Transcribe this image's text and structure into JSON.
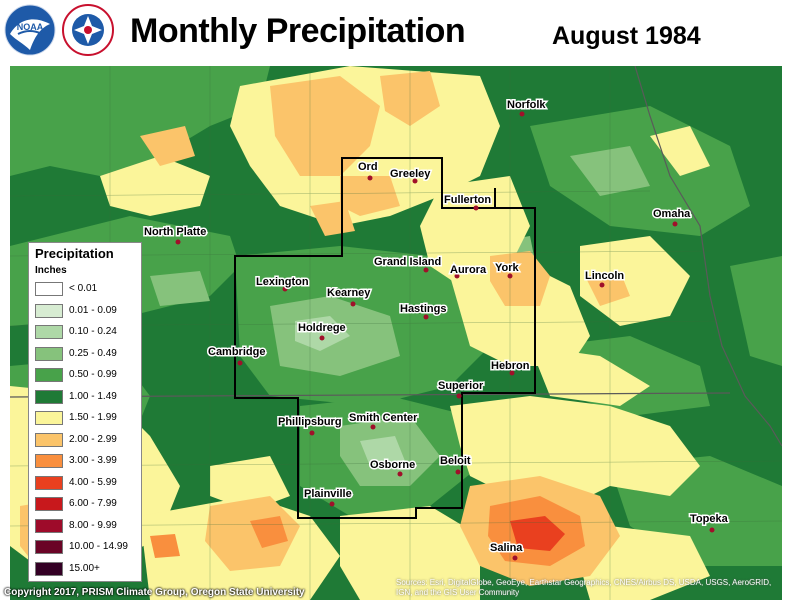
{
  "header": {
    "title": "Monthly Precipitation",
    "subtitle": "August 1984",
    "logos": [
      {
        "name": "NOAA",
        "icon": "noaa-logo"
      },
      {
        "name": "NATIONAL WEATHER SERVICE",
        "icon": "nws-logo"
      }
    ]
  },
  "legend": {
    "title": "Precipitation",
    "units": "Inches",
    "items": [
      {
        "label": "< 0.01",
        "color": "#ffffff"
      },
      {
        "label": "0.01 - 0.09",
        "color": "#d7ecd2"
      },
      {
        "label": "0.10 - 0.24",
        "color": "#aed8a7"
      },
      {
        "label": "0.25 - 0.49",
        "color": "#86c27c"
      },
      {
        "label": "0.50 - 0.99",
        "color": "#48a24a"
      },
      {
        "label": "1.00 - 1.49",
        "color": "#1f7a36"
      },
      {
        "label": "1.50 - 1.99",
        "color": "#fbf59a"
      },
      {
        "label": "2.00 - 2.99",
        "color": "#fbc46a"
      },
      {
        "label": "3.00 - 3.99",
        "color": "#f98f3e"
      },
      {
        "label": "4.00 - 5.99",
        "color": "#e9401f"
      },
      {
        "label": "6.00 - 7.99",
        "color": "#c8181c"
      },
      {
        "label": "8.00 - 9.99",
        "color": "#9e0b2a"
      },
      {
        "label": "10.00 - 14.99",
        "color": "#6a0426"
      },
      {
        "label": "15.00+",
        "color": "#330024"
      }
    ]
  },
  "cities": [
    {
      "name": "Norfolk"
    },
    {
      "name": "Ord"
    },
    {
      "name": "Greeley"
    },
    {
      "name": "Fullerton"
    },
    {
      "name": "North Platte"
    },
    {
      "name": "Omaha"
    },
    {
      "name": "Grand Island"
    },
    {
      "name": "Aurora"
    },
    {
      "name": "York"
    },
    {
      "name": "Lincoln"
    },
    {
      "name": "Lexington"
    },
    {
      "name": "Kearney"
    },
    {
      "name": "Hastings"
    },
    {
      "name": "Holdrege"
    },
    {
      "name": "Cambridge"
    },
    {
      "name": "Hebron"
    },
    {
      "name": "Superior"
    },
    {
      "name": "Phillipsburg"
    },
    {
      "name": "Smith Center"
    },
    {
      "name": "Osborne"
    },
    {
      "name": "Beloit"
    },
    {
      "name": "Plainville"
    },
    {
      "name": "Topeka"
    },
    {
      "name": "Salina"
    }
  ],
  "footer": {
    "copyright": "Copyright 2017, PRISM Climate Group, Oregon State University",
    "sources": "Sources: Esri, DigitalGlobe, GeoEye, Earthstar Geographics, CNES/Airbus DS, USDA, USGS, AeroGRID, IGN, and the GIS User Community"
  }
}
